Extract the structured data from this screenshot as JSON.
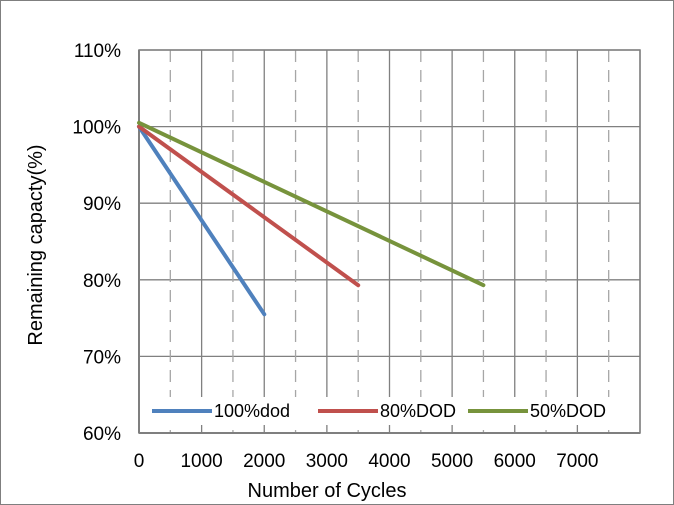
{
  "chart_data": {
    "type": "line",
    "title": "",
    "xlabel": "Number of Cycles",
    "ylabel": "Remaining capacty(%)",
    "xlim": [
      0,
      8000
    ],
    "ylim": [
      60,
      110
    ],
    "x_ticks": [
      0,
      1000,
      2000,
      3000,
      4000,
      5000,
      6000,
      7000
    ],
    "x_tick_labels": [
      "0",
      "1000",
      "2000",
      "3000",
      "4000",
      "5000",
      "6000",
      "7000"
    ],
    "y_ticks": [
      60,
      70,
      80,
      90,
      100,
      110
    ],
    "y_tick_labels": [
      "60%",
      "70%",
      "80%",
      "90%",
      "100%",
      "110%"
    ],
    "grid": true,
    "legend_position": "bottom",
    "series": [
      {
        "name": "100%dod",
        "color": "#4f81bd",
        "x": [
          0,
          2000
        ],
        "y": [
          100,
          75.5
        ]
      },
      {
        "name": "80%DOD",
        "color": "#c0504d",
        "x": [
          0,
          3500
        ],
        "y": [
          100,
          79.3
        ]
      },
      {
        "name": "50%DOD",
        "color": "#77933c",
        "x": [
          0,
          5500
        ],
        "y": [
          100.5,
          79.3
        ]
      }
    ]
  }
}
